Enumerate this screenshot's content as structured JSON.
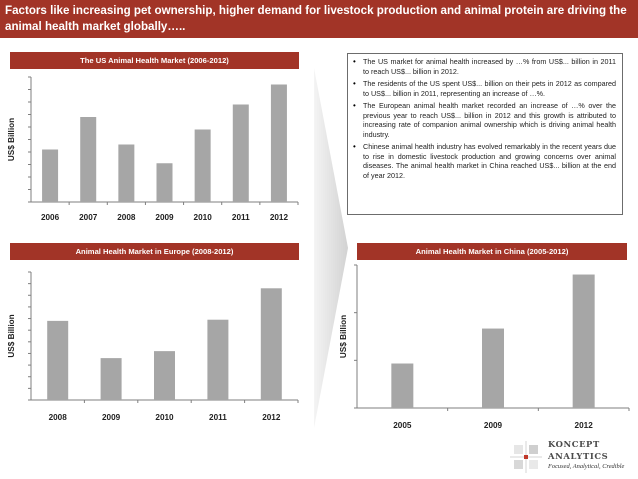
{
  "header": {
    "title": "Factors like increasing pet ownership, higher demand for livestock production and animal protein are driving the animal health market globally….."
  },
  "bullets": [
    "The US market for animal health increased by …% from US$... billion in 2011 to reach US$... billion in 2012.",
    "The residents of the US spent US$... billion on their pets in 2012 as compared to US$... billion in 2011, representing an increase of …%.",
    "The European animal health market recorded an increase of …% over the previous year to reach US$... billion in 2012 and this growth is attributed to increasing rate of companion animal ownership which is driving animal health industry.",
    "Chinese animal health industry has evolved remarkably in the recent years due to rise in domestic livestock production and growing concerns over animal diseases. The animal health market in China reached US$... billion at the end of year 2012."
  ],
  "logo": {
    "name_line1": "KONCEPT",
    "name_line2": "ANALYTICS",
    "tagline": "Focused, Analytical, Credible"
  },
  "colors": {
    "accent": "#a23427",
    "bar": "#a6a6a6",
    "axis": "#7f7f7f"
  },
  "chart_data": [
    {
      "type": "bar",
      "title": "The US Animal Health Market (2006-2012)",
      "categories": [
        "2006",
        "2007",
        "2008",
        "2009",
        "2010",
        "2011",
        "2012"
      ],
      "values": [
        4.2,
        6.8,
        4.6,
        3.1,
        5.8,
        7.8,
        9.4
      ],
      "ylabel": "US$ Billion",
      "xlabel": "",
      "ylim": [
        0,
        10
      ],
      "y_ticks": 11,
      "tick_labels_shown": false
    },
    {
      "type": "bar",
      "title": "Animal Health Market in Europe (2008-2012)",
      "categories": [
        "2008",
        "2009",
        "2010",
        "2011",
        "2012"
      ],
      "values": [
        6.8,
        3.6,
        4.2,
        6.9,
        9.6
      ],
      "ylabel": "US$ Billion",
      "xlabel": "",
      "ylim": [
        0,
        11
      ],
      "y_ticks": 12,
      "tick_labels_shown": false
    },
    {
      "type": "bar",
      "title": "Animal Health Market in China (2005-2012)",
      "categories": [
        "2005",
        "2009",
        "2012"
      ],
      "values": [
        1.4,
        2.5,
        4.2
      ],
      "ylabel": "US$ Billion",
      "xlabel": "",
      "ylim": [
        0,
        4.5
      ],
      "y_ticks": 4,
      "tick_labels_shown": false
    }
  ]
}
